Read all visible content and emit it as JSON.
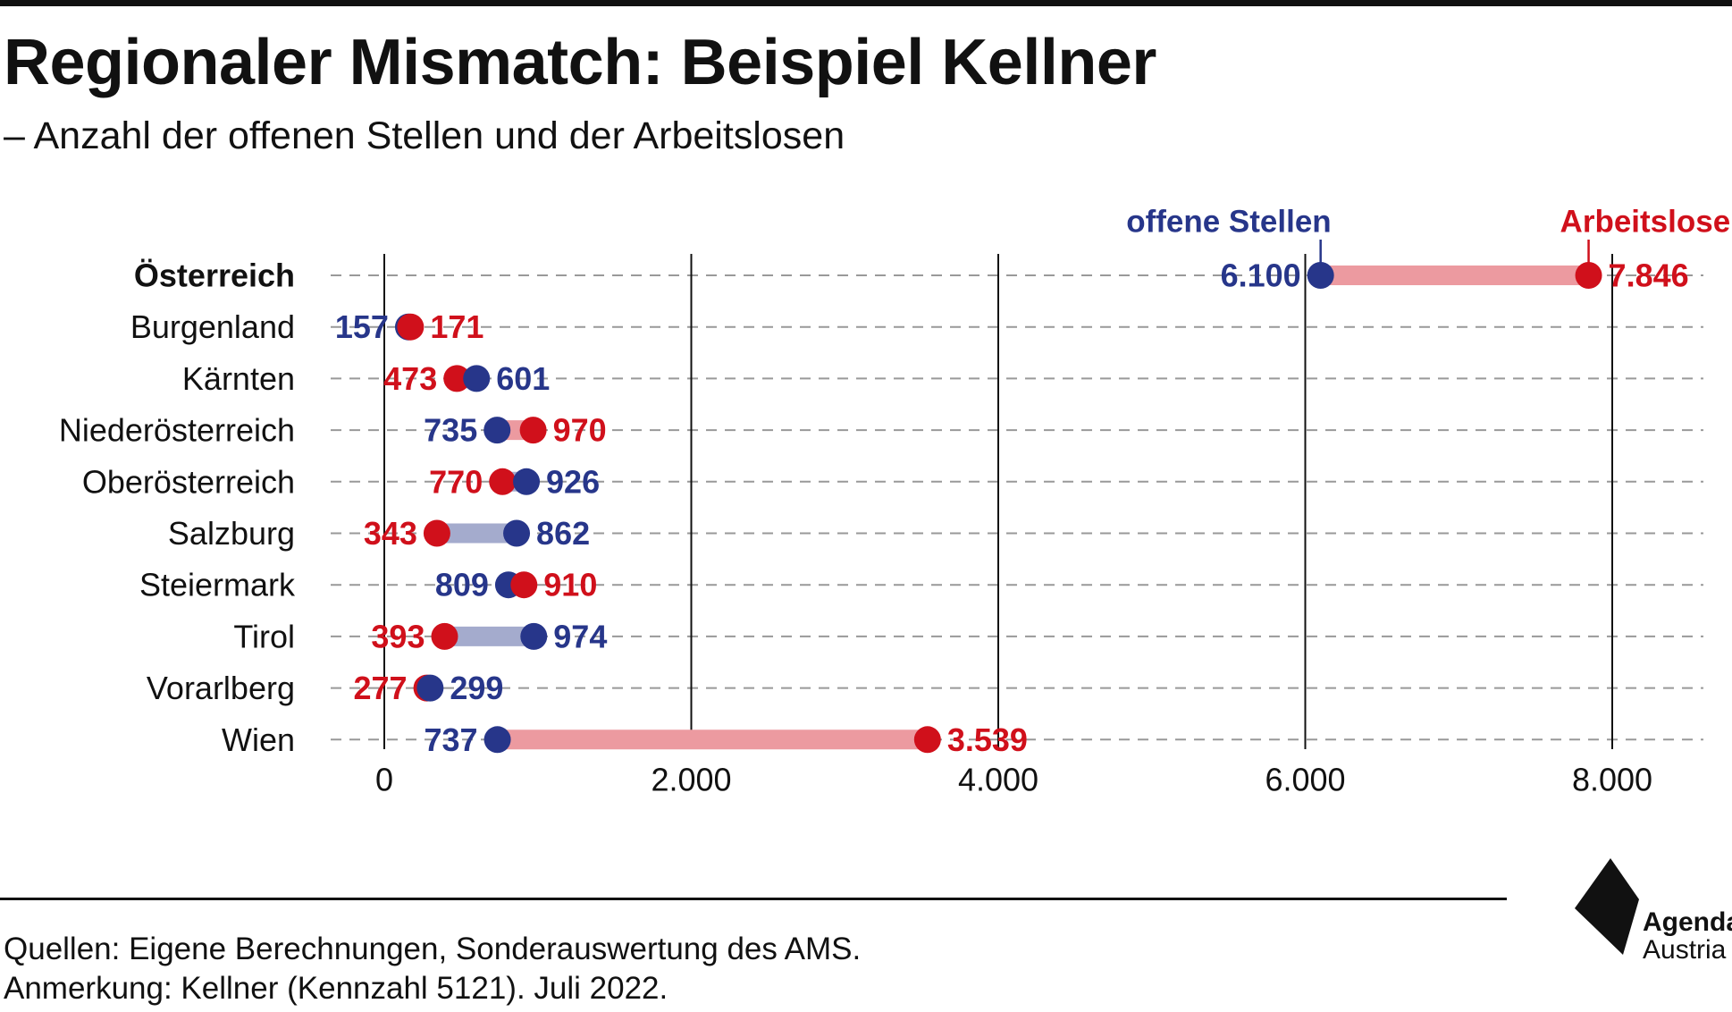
{
  "header": {
    "title": "Regionaler Mismatch: Beispiel Kellner",
    "subtitle": "– Anzahl der offenen Stellen und der Arbeitslosen"
  },
  "legend": {
    "open_positions": "offene Stellen",
    "unemployed": "Arbeitslose"
  },
  "colors": {
    "open_positions": "#27368a",
    "unemployed": "#d0101b",
    "bar_open_greater": "#a4abcd",
    "bar_unemployed_greater": "#ec9aa0",
    "grid_dash": "#999999",
    "axis_line": "#111111"
  },
  "chart_data": {
    "type": "dumbbell",
    "categories": [
      "Österreich",
      "Burgenland",
      "Kärnten",
      "Niederösterreich",
      "Oberösterreich",
      "Salzburg",
      "Steiermark",
      "Tirol",
      "Vorarlberg",
      "Wien"
    ],
    "bold_categories": [
      "Österreich"
    ],
    "series": [
      {
        "name": "offene Stellen",
        "values": [
          6100,
          157,
          601,
          735,
          926,
          862,
          809,
          974,
          299,
          737
        ],
        "labels": [
          "6.100",
          "157",
          "601",
          "735",
          "926",
          "862",
          "809",
          "974",
          "299",
          "737"
        ]
      },
      {
        "name": "Arbeitslose",
        "values": [
          7846,
          171,
          473,
          970,
          770,
          343,
          910,
          393,
          277,
          3539
        ],
        "labels": [
          "7.846",
          "171",
          "473",
          "970",
          "770",
          "343",
          "910",
          "393",
          "277",
          "3.539"
        ]
      }
    ],
    "xlim": [
      0,
      8000
    ],
    "xticks": [
      0,
      2000,
      4000,
      6000,
      8000
    ],
    "xtick_labels": [
      "0",
      "2.000",
      "4.000",
      "6.000",
      "8.000"
    ],
    "grid": "vertical lines at ticks, dashed line per category row",
    "legend_position": "top-right"
  },
  "footer": {
    "sources": "Quellen: Eigene Berechnungen, Sonderauswertung des AMS.",
    "note": "Anmerkung: Kellner (Kennzahl 5121). Juli 2022."
  },
  "logo": {
    "line1": "Agenda",
    "line2": "Austria",
    "icon": "agenda-austria-logo-icon"
  }
}
